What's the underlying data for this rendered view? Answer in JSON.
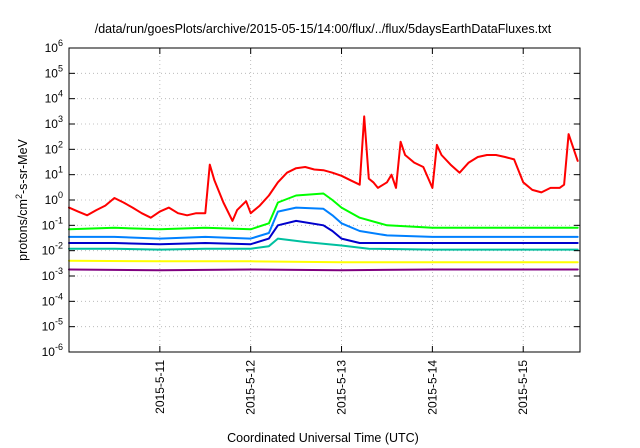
{
  "chart_data": {
    "type": "line",
    "title": "/data/run/goesPlots/archive/2015-05-15/14:00/flux/../flux/5daysEarthDataFluxes.txt",
    "xlabel": "Coordinated Universal Time (UTC)",
    "ylabel": {
      "prefix": "protons/cm",
      "sup": "2",
      "suffix": "-s-sr-MeV"
    },
    "x_unit": "days",
    "xlim": [
      "2015-05-10 00:00",
      "2015-05-15 15:00"
    ],
    "ylim": [
      1e-06,
      1000000.0
    ],
    "yscale": "log",
    "grid": true,
    "x_ticks": [
      {
        "label": "2015-5-11",
        "x": 1.0
      },
      {
        "label": "2015-5-12",
        "x": 2.0
      },
      {
        "label": "2015-5-13",
        "x": 3.0
      },
      {
        "label": "2015-5-14",
        "x": 4.0
      },
      {
        "label": "2015-5-15",
        "x": 5.0
      }
    ],
    "y_ticks": [
      {
        "base": "10",
        "exp": "-6",
        "value": 1e-06
      },
      {
        "base": "10",
        "exp": "-5",
        "value": 1e-05
      },
      {
        "base": "10",
        "exp": "-4",
        "value": 0.0001
      },
      {
        "base": "10",
        "exp": "-3",
        "value": 0.001
      },
      {
        "base": "10",
        "exp": "-2",
        "value": 0.01
      },
      {
        "base": "10",
        "exp": "-1",
        "value": 0.1
      },
      {
        "base": "10",
        "exp": "0",
        "value": 1
      },
      {
        "base": "10",
        "exp": "1",
        "value": 10
      },
      {
        "base": "10",
        "exp": "2",
        "value": 100
      },
      {
        "base": "10",
        "exp": "3",
        "value": 1000
      },
      {
        "base": "10",
        "exp": "4",
        "value": 10000
      },
      {
        "base": "10",
        "exp": "5",
        "value": 100000
      },
      {
        "base": "10",
        "exp": "6",
        "value": 1000000
      }
    ],
    "series": [
      {
        "color": "#ff0000",
        "x": [
          0.0,
          0.1,
          0.2,
          0.3,
          0.4,
          0.5,
          0.6,
          0.7,
          0.8,
          0.9,
          1.0,
          1.1,
          1.2,
          1.3,
          1.4,
          1.5,
          1.55,
          1.6,
          1.7,
          1.8,
          1.85,
          1.95,
          2.0,
          2.1,
          2.2,
          2.3,
          2.4,
          2.5,
          2.6,
          2.7,
          2.8,
          2.9,
          3.0,
          3.1,
          3.2,
          3.25,
          3.3,
          3.35,
          3.4,
          3.5,
          3.55,
          3.6,
          3.65,
          3.7,
          3.8,
          3.9,
          4.0,
          4.05,
          4.1,
          4.2,
          4.3,
          4.4,
          4.5,
          4.6,
          4.7,
          4.8,
          4.9,
          5.0,
          5.1,
          5.2,
          5.3,
          5.4,
          5.45,
          5.5,
          5.6
        ],
        "y": [
          0.5,
          0.35,
          0.25,
          0.4,
          0.6,
          1.2,
          0.8,
          0.5,
          0.3,
          0.2,
          0.35,
          0.5,
          0.3,
          0.25,
          0.3,
          0.3,
          25,
          6,
          0.8,
          0.15,
          0.4,
          0.9,
          0.3,
          0.6,
          1.5,
          5,
          12,
          18,
          20,
          16,
          15,
          12,
          9,
          6,
          4,
          2000,
          7,
          5,
          3,
          5,
          10,
          3,
          200,
          60,
          30,
          20,
          3,
          150,
          60,
          25,
          12,
          30,
          50,
          60,
          60,
          50,
          40,
          5,
          2.5,
          2,
          3,
          3,
          4,
          400,
          35
        ]
      },
      {
        "color": "#00ff00",
        "x": [
          0.0,
          0.5,
          1.0,
          1.5,
          2.0,
          2.2,
          2.3,
          2.5,
          2.8,
          2.9,
          3.0,
          3.2,
          3.5,
          4.0,
          4.5,
          5.0,
          5.6
        ],
        "y": [
          0.07,
          0.08,
          0.07,
          0.08,
          0.07,
          0.12,
          0.8,
          1.5,
          1.8,
          1.0,
          0.5,
          0.2,
          0.1,
          0.08,
          0.08,
          0.08,
          0.08
        ]
      },
      {
        "color": "#0080ff",
        "x": [
          0.0,
          0.5,
          1.0,
          1.5,
          2.0,
          2.2,
          2.3,
          2.5,
          2.8,
          2.9,
          3.0,
          3.2,
          3.5,
          4.0,
          4.5,
          5.0,
          5.6
        ],
        "y": [
          0.035,
          0.035,
          0.03,
          0.035,
          0.03,
          0.05,
          0.35,
          0.5,
          0.45,
          0.25,
          0.12,
          0.06,
          0.04,
          0.035,
          0.035,
          0.035,
          0.035
        ]
      },
      {
        "color": "#0000cc",
        "x": [
          0.0,
          0.5,
          1.0,
          1.5,
          2.0,
          2.2,
          2.3,
          2.5,
          2.8,
          2.9,
          3.0,
          3.2,
          3.5,
          4.0,
          4.5,
          5.0,
          5.6
        ],
        "y": [
          0.02,
          0.02,
          0.018,
          0.02,
          0.018,
          0.03,
          0.1,
          0.15,
          0.1,
          0.06,
          0.03,
          0.02,
          0.02,
          0.02,
          0.02,
          0.02,
          0.02
        ]
      },
      {
        "color": "#00c0a0",
        "x": [
          0.0,
          0.5,
          1.0,
          1.5,
          2.0,
          2.2,
          2.3,
          2.6,
          3.0,
          3.3,
          4.0,
          5.0,
          5.6
        ],
        "y": [
          0.012,
          0.012,
          0.011,
          0.012,
          0.012,
          0.015,
          0.03,
          0.022,
          0.016,
          0.012,
          0.011,
          0.011,
          0.011
        ]
      },
      {
        "color": "#ffff00",
        "x": [
          0.0,
          1.0,
          2.0,
          3.0,
          4.0,
          5.0,
          5.6
        ],
        "y": [
          0.004,
          0.0038,
          0.0038,
          0.0035,
          0.0035,
          0.0035,
          0.0035
        ]
      },
      {
        "color": "#800080",
        "x": [
          0.0,
          1.0,
          2.0,
          3.0,
          4.0,
          5.0,
          5.6
        ],
        "y": [
          0.0018,
          0.0017,
          0.0018,
          0.0017,
          0.0018,
          0.0018,
          0.0018
        ]
      }
    ]
  }
}
